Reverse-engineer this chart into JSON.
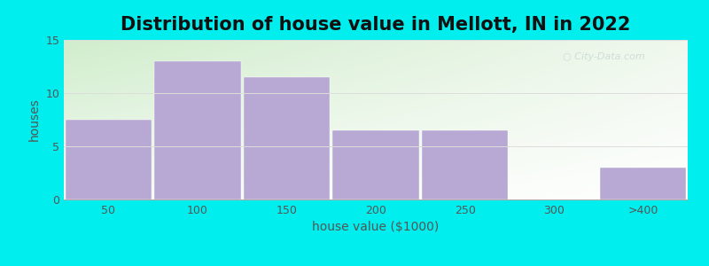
{
  "title": "Distribution of house value in Mellott, IN in 2022",
  "xlabel": "house value ($1000)",
  "ylabel": "houses",
  "categories": [
    "50",
    "100",
    "150",
    "200",
    "250",
    "300",
    ">400"
  ],
  "values": [
    7.5,
    13,
    11.5,
    6.5,
    6.5,
    0,
    3
  ],
  "bar_color": "#b8a9d4",
  "background_color": "#00EEEE",
  "ylim": [
    0,
    15
  ],
  "yticks": [
    0,
    5,
    10,
    15
  ],
  "title_fontsize": 15,
  "label_fontsize": 10,
  "tick_fontsize": 9,
  "bar_width": 0.97,
  "gradient_left_top": "#d8edcc",
  "gradient_right_bottom": "#f8fdf5",
  "grid_color": "#dddddd",
  "watermark_color": "#bbcccc",
  "watermark_alpha": 0.6
}
